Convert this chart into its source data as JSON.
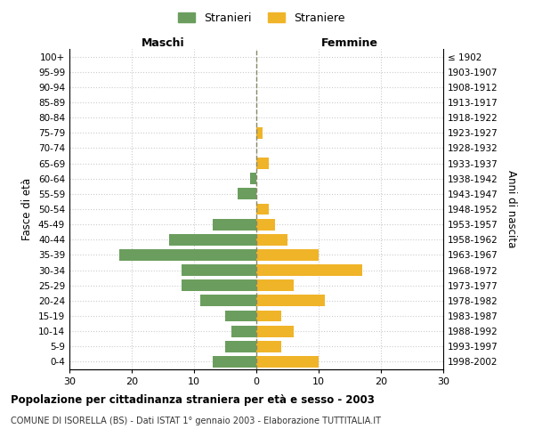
{
  "age_groups": [
    "0-4",
    "5-9",
    "10-14",
    "15-19",
    "20-24",
    "25-29",
    "30-34",
    "35-39",
    "40-44",
    "45-49",
    "50-54",
    "55-59",
    "60-64",
    "65-69",
    "70-74",
    "75-79",
    "80-84",
    "85-89",
    "90-94",
    "95-99",
    "100+"
  ],
  "birth_years": [
    "1998-2002",
    "1993-1997",
    "1988-1992",
    "1983-1987",
    "1978-1982",
    "1973-1977",
    "1968-1972",
    "1963-1967",
    "1958-1962",
    "1953-1957",
    "1948-1952",
    "1943-1947",
    "1938-1942",
    "1933-1937",
    "1928-1932",
    "1923-1927",
    "1918-1922",
    "1913-1917",
    "1908-1912",
    "1903-1907",
    "≤ 1902"
  ],
  "males": [
    7,
    5,
    4,
    5,
    9,
    12,
    12,
    22,
    14,
    7,
    0,
    3,
    1,
    0,
    0,
    0,
    0,
    0,
    0,
    0,
    0
  ],
  "females": [
    10,
    4,
    6,
    4,
    11,
    6,
    17,
    10,
    5,
    3,
    2,
    0,
    0,
    2,
    0,
    1,
    0,
    0,
    0,
    0,
    0
  ],
  "male_color": "#6b9e5e",
  "female_color": "#f0b429",
  "male_label": "Stranieri",
  "female_label": "Straniere",
  "xlim": 30,
  "title": "Popolazione per cittadinanza straniera per età e sesso - 2003",
  "subtitle": "COMUNE DI ISORELLA (BS) - Dati ISTAT 1° gennaio 2003 - Elaborazione TUTTITALIA.IT",
  "left_header": "Maschi",
  "right_header": "Femmine",
  "y_left_label": "Fasce di età",
  "y_right_label": "Anni di nascita",
  "bg_color": "#ffffff",
  "grid_color": "#cccccc",
  "center_line_color": "#888866"
}
